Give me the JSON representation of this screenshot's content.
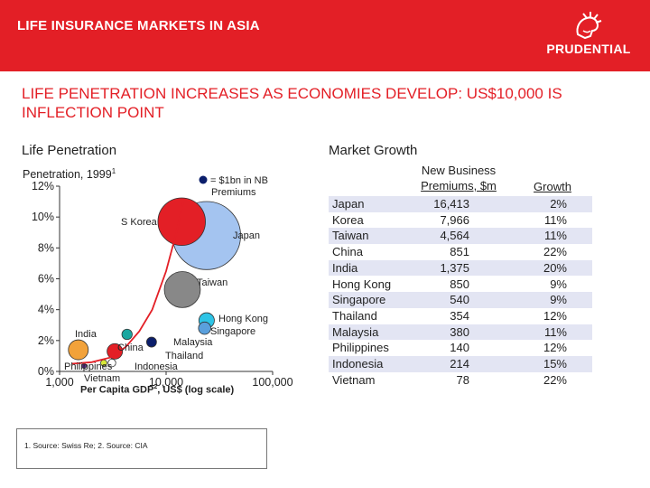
{
  "header": {
    "title": "LIFE INSURANCE MARKETS IN ASIA",
    "brand": "PRUDENTIAL",
    "brand_color": "#e31f26"
  },
  "headline": "LIFE PENETRATION INCREASES AS ECONOMIES DEVELOP: US$10,000 IS INFLECTION POINT",
  "section_left": "Life Penetration",
  "section_right": "Market Growth",
  "chart_data": [
    {
      "type": "scatter",
      "ylabel": "Penetration, 1999",
      "ylabel_sup": "1",
      "xlabel": "Per Capita GDP",
      "xlabel_sup": "2",
      "xlabel_suffix": ", US$ (log scale)",
      "x_scale": "log",
      "xlim": [
        1000,
        100000
      ],
      "ylim": [
        0,
        12
      ],
      "yticks": [
        {
          "value": 0,
          "label": "0%"
        },
        {
          "value": 2,
          "label": "2%"
        },
        {
          "value": 4,
          "label": "4%"
        },
        {
          "value": 6,
          "label": "6%"
        },
        {
          "value": 8,
          "label": "8%"
        },
        {
          "value": 10,
          "label": "10%"
        },
        {
          "value": 12,
          "label": "12%"
        }
      ],
      "xticks": [
        {
          "value": 1000,
          "label": "1,000"
        },
        {
          "value": 10000,
          "label": "10,000"
        },
        {
          "value": 100000,
          "label": "100,000"
        }
      ],
      "legend": {
        "label": "= $1bn in NB Premiums",
        "line1": "= $1bn in NB",
        "line2": "Premiums",
        "color": "#0b1e6b"
      },
      "points": [
        {
          "name": "Japan",
          "x": 24000,
          "y": 8.8,
          "size": 16.4,
          "color": "#a4c4f0"
        },
        {
          "name": "S Korea",
          "x": 14000,
          "y": 9.7,
          "size": 8.0,
          "color": "#e31f26"
        },
        {
          "name": "Taiwan",
          "x": 14200,
          "y": 5.3,
          "size": 4.6,
          "color": "#888888"
        },
        {
          "name": "Hong Kong",
          "x": 24000,
          "y": 3.3,
          "size": 0.85,
          "color": "#2ec4e6"
        },
        {
          "name": "Singapore",
          "x": 23000,
          "y": 2.8,
          "size": 0.54,
          "color": "#5aa0dd"
        },
        {
          "name": "Malaysia",
          "x": 4300,
          "y": 2.4,
          "size": 0.38,
          "color": "#1aa7a0"
        },
        {
          "name": "Thailand",
          "x": 7300,
          "y": 1.9,
          "size": 0.35,
          "color": "#0b1e6b"
        },
        {
          "name": "China",
          "x": 3300,
          "y": 1.3,
          "size": 0.85,
          "color": "#e31f26"
        },
        {
          "name": "India",
          "x": 1500,
          "y": 1.4,
          "size": 1.4,
          "color": "#f2a23a"
        },
        {
          "name": "Philippines",
          "x": 2600,
          "y": 0.55,
          "size": 0.14,
          "color": "#d7e83a"
        },
        {
          "name": "Indonesia",
          "x": 3100,
          "y": 0.55,
          "size": 0.21,
          "color": "#ffffff"
        },
        {
          "name": "Vietnam",
          "x": 1700,
          "y": 0.35,
          "size": 0.08,
          "color": "#5c2c8f"
        }
      ],
      "trend": [
        [
          1300,
          0.5
        ],
        [
          2000,
          0.6
        ],
        [
          3000,
          0.9
        ],
        [
          4200,
          1.6
        ],
        [
          5600,
          2.6
        ],
        [
          7400,
          4.0
        ],
        [
          10000,
          6.5
        ],
        [
          12500,
          9.0
        ],
        [
          14500,
          11.0
        ]
      ],
      "trend_color": "#e31f26"
    },
    {
      "type": "table",
      "columns": [
        "",
        "New Business Premiums, $m",
        "Growth"
      ],
      "col_premiums_line1": "New Business",
      "col_premiums_line2": "Premiums, $m",
      "col_growth": "Growth",
      "rows": [
        {
          "country": "Japan",
          "premiums": "16,413",
          "growth": "2%"
        },
        {
          "country": "Korea",
          "premiums": "7,966",
          "growth": "11%"
        },
        {
          "country": "Taiwan",
          "premiums": "4,564",
          "growth": "11%"
        },
        {
          "country": "China",
          "premiums": "851",
          "growth": "22%"
        },
        {
          "country": "India",
          "premiums": "1,375",
          "growth": "20%"
        },
        {
          "country": "Hong Kong",
          "premiums": "850",
          "growth": "9%"
        },
        {
          "country": "Singapore",
          "premiums": "540",
          "growth": "9%"
        },
        {
          "country": "Thailand",
          "premiums": "354",
          "growth": "12%"
        },
        {
          "country": "Malaysia",
          "premiums": "380",
          "growth": "11%"
        },
        {
          "country": "Philippines",
          "premiums": "140",
          "growth": "12%"
        },
        {
          "country": "Indonesia",
          "premiums": "214",
          "growth": "15%"
        },
        {
          "country": "Vietnam",
          "premiums": "78",
          "growth": "22%"
        }
      ],
      "shade_color": "#e3e5f3"
    }
  ],
  "footnote": "1. Source: Swiss Re; 2. Source: CIA"
}
